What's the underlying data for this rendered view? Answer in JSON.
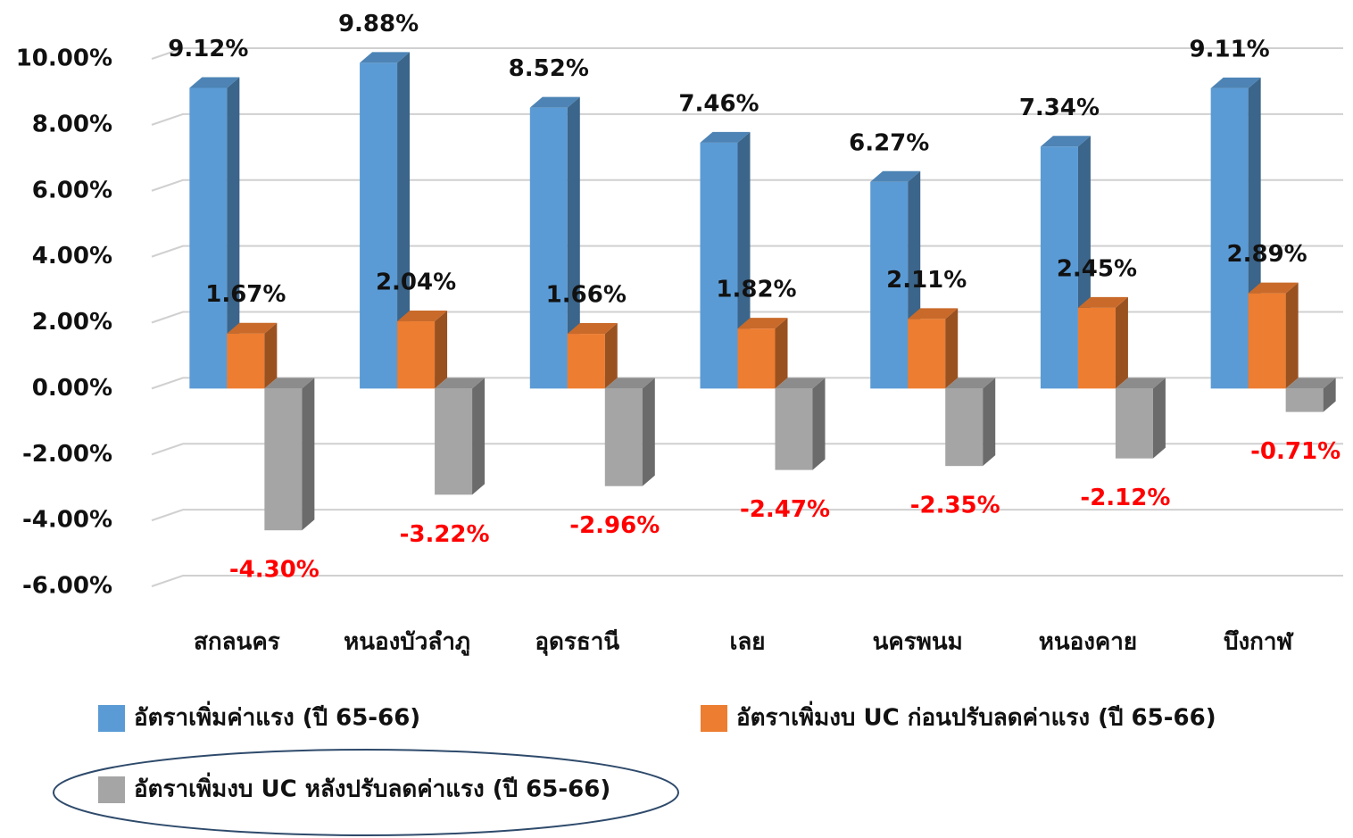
{
  "chart_data": {
    "type": "bar3d",
    "categories": [
      "สกลนคร",
      "หนองบัวลำภู",
      "อุดรธานี",
      "เลย",
      "นครพนม",
      "หนองคาย",
      "บึงกาฬ"
    ],
    "series": [
      {
        "name": "อัตราเพิ่มค่าแรง (ปี 65-66)",
        "color": "#5b9bd5",
        "values": [
          9.12,
          9.88,
          8.52,
          7.46,
          6.27,
          7.34,
          9.11
        ],
        "value_labels": [
          "9.12%",
          "9.88%",
          "8.52%",
          "7.46%",
          "6.27%",
          "7.34%",
          "9.11%"
        ]
      },
      {
        "name": "อัตราเพิ่มงบ UC ก่อนปรับลดค่าแรง (ปี 65-66)",
        "color": "#ed7d31",
        "values": [
          1.67,
          2.04,
          1.66,
          1.82,
          2.11,
          2.45,
          2.89
        ],
        "value_labels": [
          "1.67%",
          "2.04%",
          "1.66%",
          "1.82%",
          "2.11%",
          "2.45%",
          "2.89%"
        ]
      },
      {
        "name": "อัตราเพิ่มงบ UC หลังปรับลดค่าแรง (ปี 65-66)",
        "color": "#a5a5a5",
        "values": [
          -4.3,
          -3.22,
          -2.96,
          -2.47,
          -2.35,
          -2.12,
          -0.71
        ],
        "value_labels": [
          "-4.30%",
          "-3.22%",
          "-2.96%",
          "-2.47%",
          "-2.35%",
          "-2.12%",
          "-0.71%"
        ]
      }
    ],
    "negative_label_color": "#ff0000",
    "ylim": [
      -6,
      10
    ],
    "yticks": [
      {
        "value": -6,
        "label": "-6.00%"
      },
      {
        "value": -4,
        "label": "-4.00%"
      },
      {
        "value": -2,
        "label": "-2.00%"
      },
      {
        "value": 0,
        "label": "0.00%"
      },
      {
        "value": 2,
        "label": "2.00%"
      },
      {
        "value": 4,
        "label": "4.00%"
      },
      {
        "value": 6,
        "label": "6.00%"
      },
      {
        "value": 8,
        "label": "8.00%"
      },
      {
        "value": 10,
        "label": "10.00%"
      }
    ],
    "grid": true
  }
}
